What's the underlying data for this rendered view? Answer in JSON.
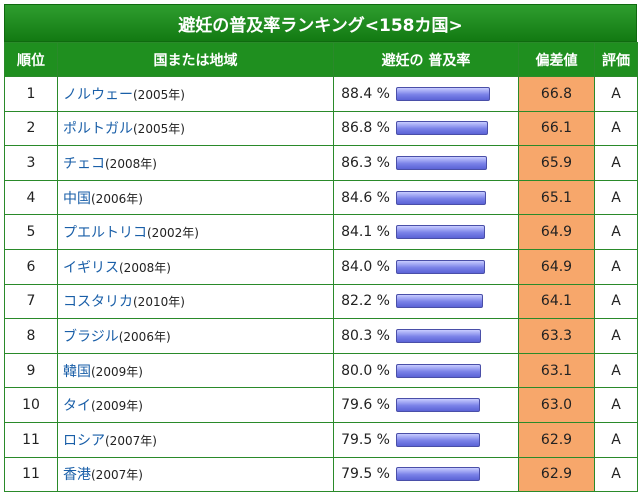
{
  "title": "避妊の普及率ランキング<158カ国>",
  "headers": {
    "rank": "順位",
    "country": "国または地域",
    "rate": "避妊の 普及率",
    "deviation": "偏差値",
    "grade": "評価"
  },
  "bar_max_percent": 100,
  "rows": [
    {
      "rank": "1",
      "name": "ノルウェー",
      "year": "(2005年)",
      "rate": "88.4 %",
      "rate_value": 88.4,
      "deviation": "66.8",
      "grade": "A"
    },
    {
      "rank": "2",
      "name": "ポルトガル",
      "year": "(2005年)",
      "rate": "86.8 %",
      "rate_value": 86.8,
      "deviation": "66.1",
      "grade": "A"
    },
    {
      "rank": "3",
      "name": "チェコ",
      "year": "(2008年)",
      "rate": "86.3 %",
      "rate_value": 86.3,
      "deviation": "65.9",
      "grade": "A"
    },
    {
      "rank": "4",
      "name": "中国",
      "year": "(2006年)",
      "rate": "84.6 %",
      "rate_value": 84.6,
      "deviation": "65.1",
      "grade": "A"
    },
    {
      "rank": "5",
      "name": "プエルトリコ",
      "year": "(2002年)",
      "rate": "84.1 %",
      "rate_value": 84.1,
      "deviation": "64.9",
      "grade": "A"
    },
    {
      "rank": "6",
      "name": "イギリス",
      "year": "(2008年)",
      "rate": "84.0 %",
      "rate_value": 84.0,
      "deviation": "64.9",
      "grade": "A"
    },
    {
      "rank": "7",
      "name": "コスタリカ",
      "year": "(2010年)",
      "rate": "82.2 %",
      "rate_value": 82.2,
      "deviation": "64.1",
      "grade": "A"
    },
    {
      "rank": "8",
      "name": "ブラジル",
      "year": "(2006年)",
      "rate": "80.3 %",
      "rate_value": 80.3,
      "deviation": "63.3",
      "grade": "A"
    },
    {
      "rank": "9",
      "name": "韓国",
      "year": "(2009年)",
      "rate": "80.0 %",
      "rate_value": 80.0,
      "deviation": "63.1",
      "grade": "A"
    },
    {
      "rank": "10",
      "name": "タイ",
      "year": "(2009年)",
      "rate": "79.6 %",
      "rate_value": 79.6,
      "deviation": "63.0",
      "grade": "A"
    },
    {
      "rank": "11",
      "name": "ロシア",
      "year": "(2007年)",
      "rate": "79.5 %",
      "rate_value": 79.5,
      "deviation": "62.9",
      "grade": "A"
    },
    {
      "rank": "11",
      "name": "香港",
      "year": "(2007年)",
      "rate": "79.5 %",
      "rate_value": 79.5,
      "deviation": "62.9",
      "grade": "A"
    }
  ],
  "colors": {
    "header_green": "#1f8f1f",
    "deviation_orange": "#f7a76b",
    "link_blue": "#1a5fa8",
    "bar_blue": "#7a82e8"
  }
}
